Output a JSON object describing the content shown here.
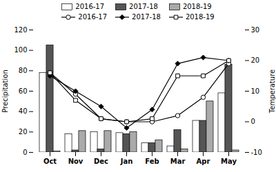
{
  "chart_data": {
    "type": "bar",
    "categories": [
      "Oct",
      "Nov",
      "Dec",
      "Jan",
      "Feb",
      "Mar",
      "Apr",
      "May"
    ],
    "series": [
      {
        "name": "2016-17",
        "type": "bar",
        "color": "white",
        "values": [
          78,
          18,
          20,
          19,
          9,
          6,
          31,
          58
        ]
      },
      {
        "name": "2017-18",
        "type": "bar",
        "color": "#555555",
        "values": [
          105,
          2,
          3,
          18,
          9,
          22,
          31,
          86
        ]
      },
      {
        "name": "2018-19",
        "type": "bar",
        "color": "#aaaaaa",
        "values": [
          1,
          21,
          21,
          20,
          12,
          3,
          50,
          2
        ]
      },
      {
        "name": "2016-17",
        "type": "line",
        "axis": "y2",
        "color": "black",
        "marker": "circle-open",
        "values": [
          16,
          9,
          1,
          0,
          0,
          2,
          8,
          19
        ]
      },
      {
        "name": "2017-18",
        "type": "line",
        "axis": "y2",
        "color": "black",
        "marker": "diamond",
        "values": [
          15,
          10,
          5,
          -2,
          4,
          19,
          21,
          20
        ]
      },
      {
        "name": "2018-19",
        "type": "line",
        "axis": "y2",
        "color": "black",
        "marker": "square-open",
        "values": [
          16,
          7,
          1,
          0,
          1,
          15,
          15,
          20
        ]
      }
    ],
    "ylabel": "Precipitation",
    "y2label": "Temperature",
    "ylim": [
      0,
      120
    ],
    "yticks": [
      0,
      20,
      40,
      60,
      80,
      100,
      120
    ],
    "y2lim": [
      -10,
      30
    ],
    "y2ticks": [
      -10,
      0,
      10,
      20,
      30
    ],
    "legend": "upper center",
    "grid": false
  }
}
